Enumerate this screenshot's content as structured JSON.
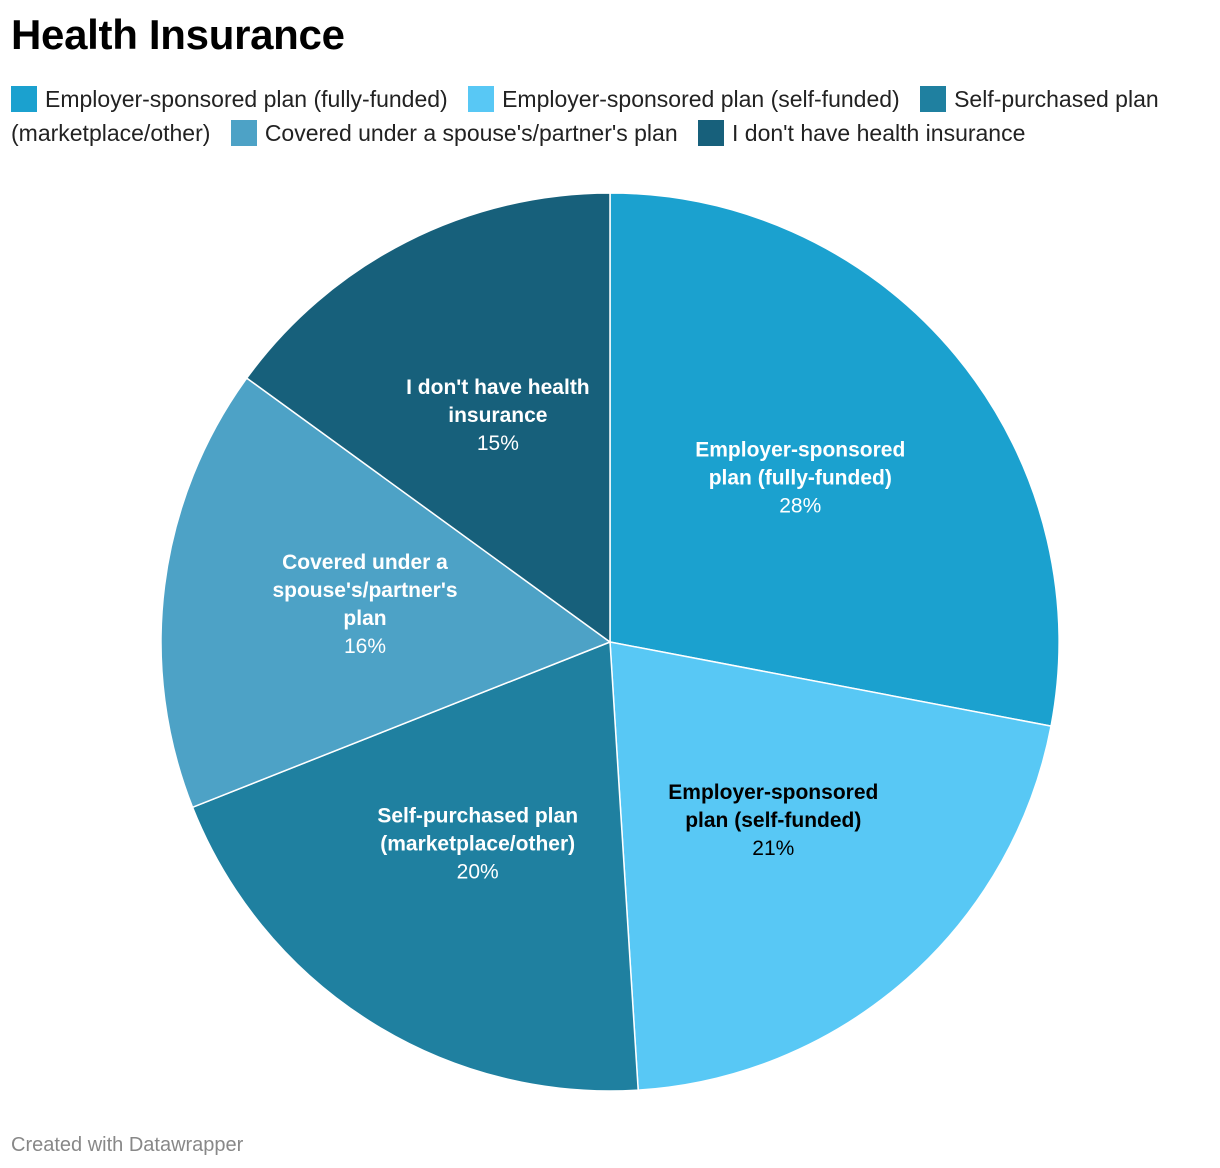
{
  "title": "Health Insurance",
  "credit": "Created with Datawrapper",
  "chart_data": {
    "type": "pie",
    "title": "Health Insurance",
    "slices": [
      {
        "name": "Employer-sponsored plan (fully-funded)",
        "label_lines": [
          "Employer-sponsored",
          "plan (fully-funded)"
        ],
        "value": 28,
        "value_label": "28%",
        "color": "#1ba1cf",
        "text_color": "#ffffff"
      },
      {
        "name": "Employer-sponsored plan (self-funded)",
        "label_lines": [
          "Employer-sponsored",
          "plan (self-funded)"
        ],
        "value": 21,
        "value_label": "21%",
        "color": "#58c8f5",
        "text_color": "#000000"
      },
      {
        "name": "Self-purchased plan (marketplace/other)",
        "label_lines": [
          "Self-purchased plan",
          "(marketplace/other)"
        ],
        "value": 20,
        "value_label": "20%",
        "color": "#1f80a0",
        "text_color": "#ffffff"
      },
      {
        "name": "Covered under a spouse's/partner's plan",
        "label_lines": [
          "Covered under a",
          "spouse's/partner's",
          "plan"
        ],
        "value": 16,
        "value_label": "16%",
        "color": "#4da2c6",
        "text_color": "#ffffff"
      },
      {
        "name": "I don't have health insurance",
        "label_lines": [
          "I don't have health",
          "insurance"
        ],
        "value": 15,
        "value_label": "15%",
        "color": "#17607b",
        "text_color": "#ffffff"
      }
    ],
    "legend": "top"
  }
}
